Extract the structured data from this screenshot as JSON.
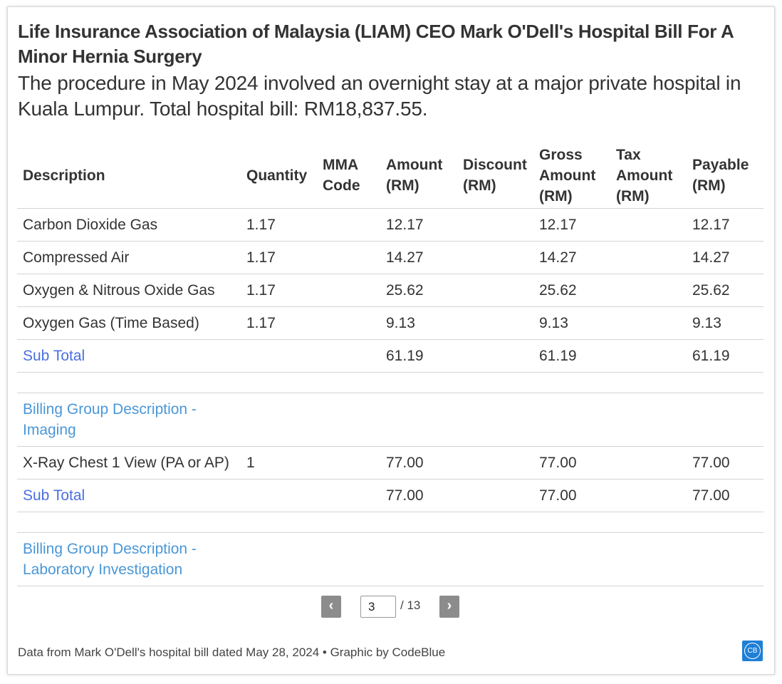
{
  "title": "Life Insurance Association of Malaysia (LIAM) CEO Mark O'Dell's Hospital Bill For A Minor Hernia Surgery",
  "subtitle": "The procedure in May 2024 involved an overnight stay at a major private hospital in Kuala Lumpur. Total hospital bill: RM18,837.55.",
  "chart_data": {
    "type": "table",
    "columns": [
      "Description",
      "Quantity",
      "MMA Code",
      "Amount (RM)",
      "Discount (RM)",
      "Gross Amount (RM)",
      "Tax Amount (RM)",
      "Payable (RM)"
    ],
    "rows": [
      [
        "Carbon Dioxide Gas",
        "1.17",
        "",
        "12.17",
        "",
        "12.17",
        "",
        "12.17"
      ],
      [
        "Compressed Air",
        "1.17",
        "",
        "14.27",
        "",
        "14.27",
        "",
        "14.27"
      ],
      [
        "Oxygen & Nitrous Oxide Gas",
        "1.17",
        "",
        "25.62",
        "",
        "25.62",
        "",
        "25.62"
      ],
      [
        "Oxygen Gas (Time Based)",
        "1.17",
        "",
        "9.13",
        "",
        "9.13",
        "",
        "9.13"
      ],
      [
        "Sub Total",
        "",
        "",
        "61.19",
        "",
        "61.19",
        "",
        "61.19"
      ],
      [
        "",
        "",
        "",
        "",
        "",
        "",
        "",
        ""
      ],
      [
        "Billing Group Description - Imaging",
        "",
        "",
        "",
        "",
        "",
        "",
        ""
      ],
      [
        "X-Ray Chest 1 View (PA or AP)",
        "1",
        "",
        "77.00",
        "",
        "77.00",
        "",
        "77.00"
      ],
      [
        "Sub Total",
        "",
        "",
        "77.00",
        "",
        "77.00",
        "",
        "77.00"
      ],
      [
        "",
        "",
        "",
        "",
        "",
        "",
        "",
        ""
      ],
      [
        "Billing Group Description - Laboratory Investigation",
        "",
        "",
        "",
        "",
        "",
        "",
        ""
      ]
    ],
    "row_types": [
      "item",
      "item",
      "item",
      "item",
      "subtotal",
      "spacer",
      "group",
      "item",
      "subtotal",
      "spacer",
      "group"
    ]
  },
  "pager": {
    "prev_label": "‹",
    "next_label": "›",
    "current_page": "3",
    "total": "/ 13"
  },
  "footer": "Data from Mark O'Dell's hospital bill dated May 28, 2024 • Graphic by CodeBlue",
  "logo_text": "CB",
  "colors": {
    "subtotal_text": "#4a6fe0",
    "group_text": "#4a97d8",
    "pager_button": "#8c8c8c",
    "logo": "#1e7fd6"
  }
}
